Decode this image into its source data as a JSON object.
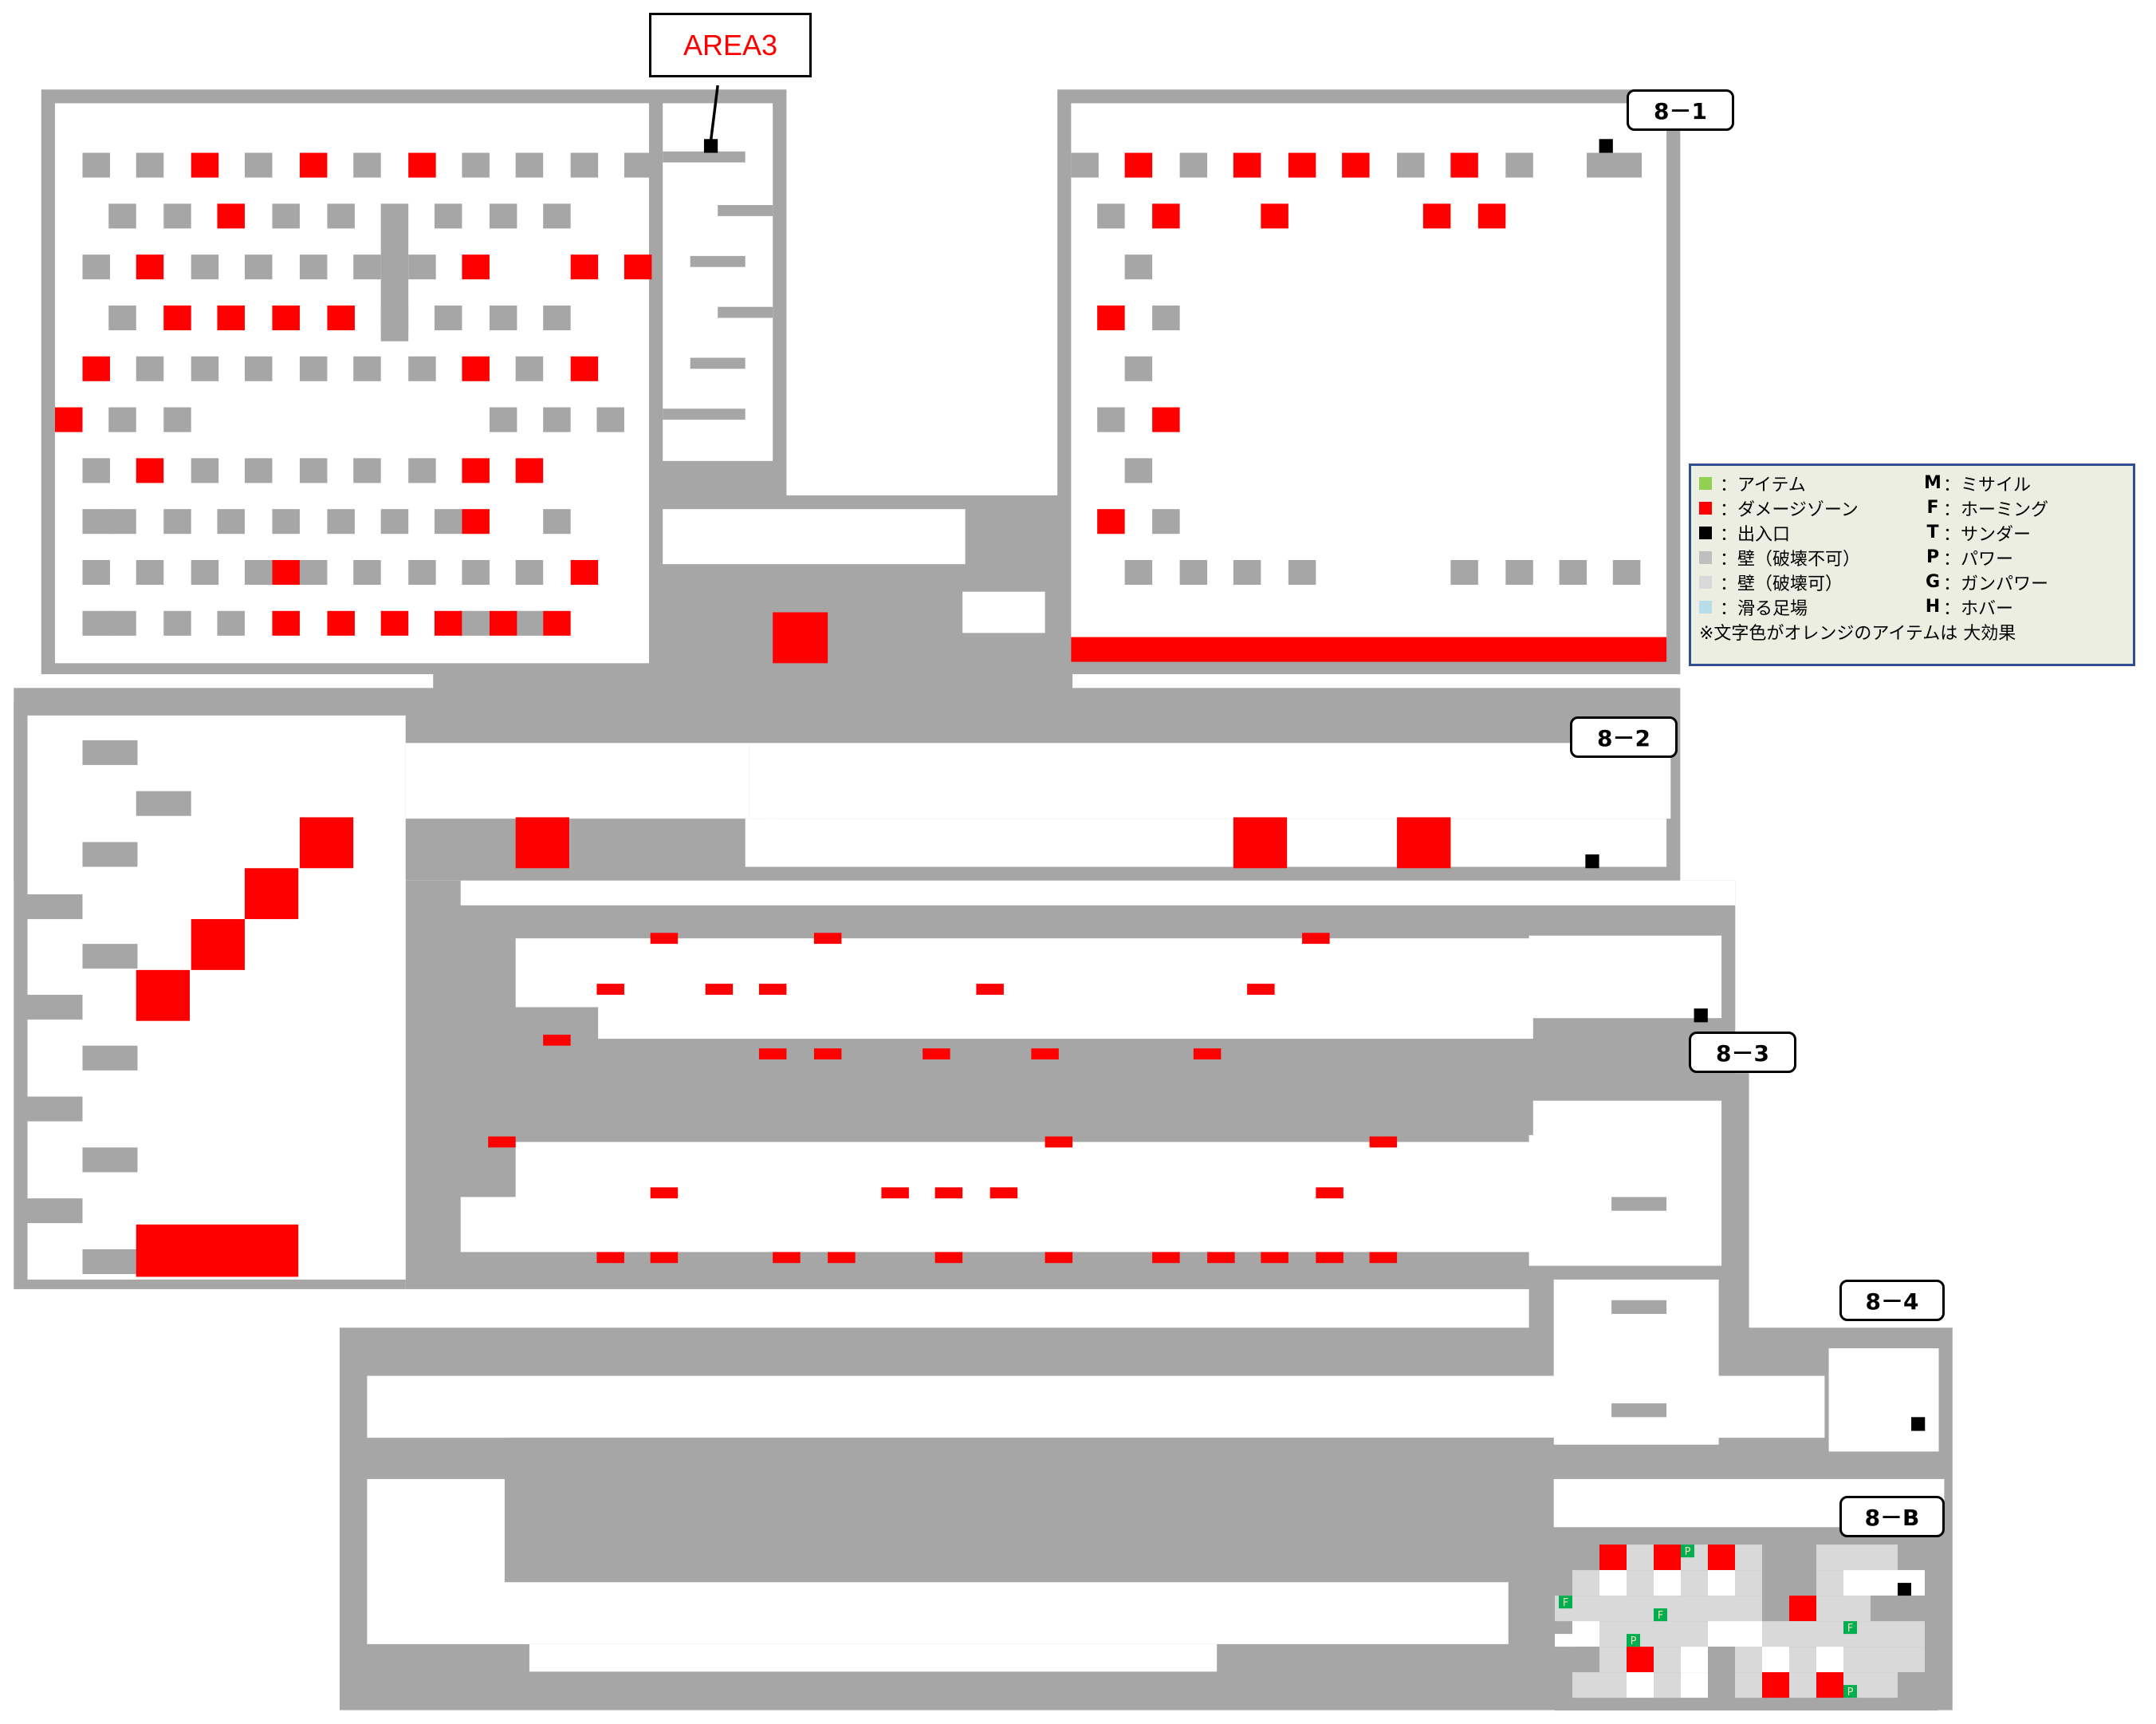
{
  "area_title": "AREA3",
  "stage_labels": [
    "8－1",
    "8－2",
    "8－3",
    "8－4",
    "8－B"
  ],
  "colors": {
    "wall_solid": "#a6a6a6",
    "wall_breakable": "#d9d9d9",
    "damage_zone": "#ff0000",
    "exit": "#000000",
    "item": "#92d050",
    "item_tile": "#00b050",
    "slippery": "#b7dee8",
    "floor": "#ffffff"
  },
  "legend": {
    "symbols": [
      {
        "color": "#92d050",
        "label": "：アイテム"
      },
      {
        "color": "#ff0000",
        "label": "：ダメージゾーン"
      },
      {
        "color": "#000000",
        "label": "：出入口"
      },
      {
        "color": "#bfbfbf",
        "label": "：壁（破壊不可）"
      },
      {
        "color": "#d9d9d9",
        "label": "：壁（破壊可）"
      },
      {
        "color": "#b7dee8",
        "label": "：滑る足場"
      }
    ],
    "items": [
      {
        "key": "M",
        "label": "：ミサイル"
      },
      {
        "key": "F",
        "label": "：ホーミング"
      },
      {
        "key": "T",
        "label": "：サンダー"
      },
      {
        "key": "P",
        "label": "：パワー"
      },
      {
        "key": "G",
        "label": "：ガンパワー"
      },
      {
        "key": "H",
        "label": "：ホバー"
      }
    ],
    "note": "※文字色がオレンジのアイテムは 大効果"
  },
  "item_tiles": [
    "P",
    "F",
    "F",
    "P",
    "F",
    "P"
  ]
}
